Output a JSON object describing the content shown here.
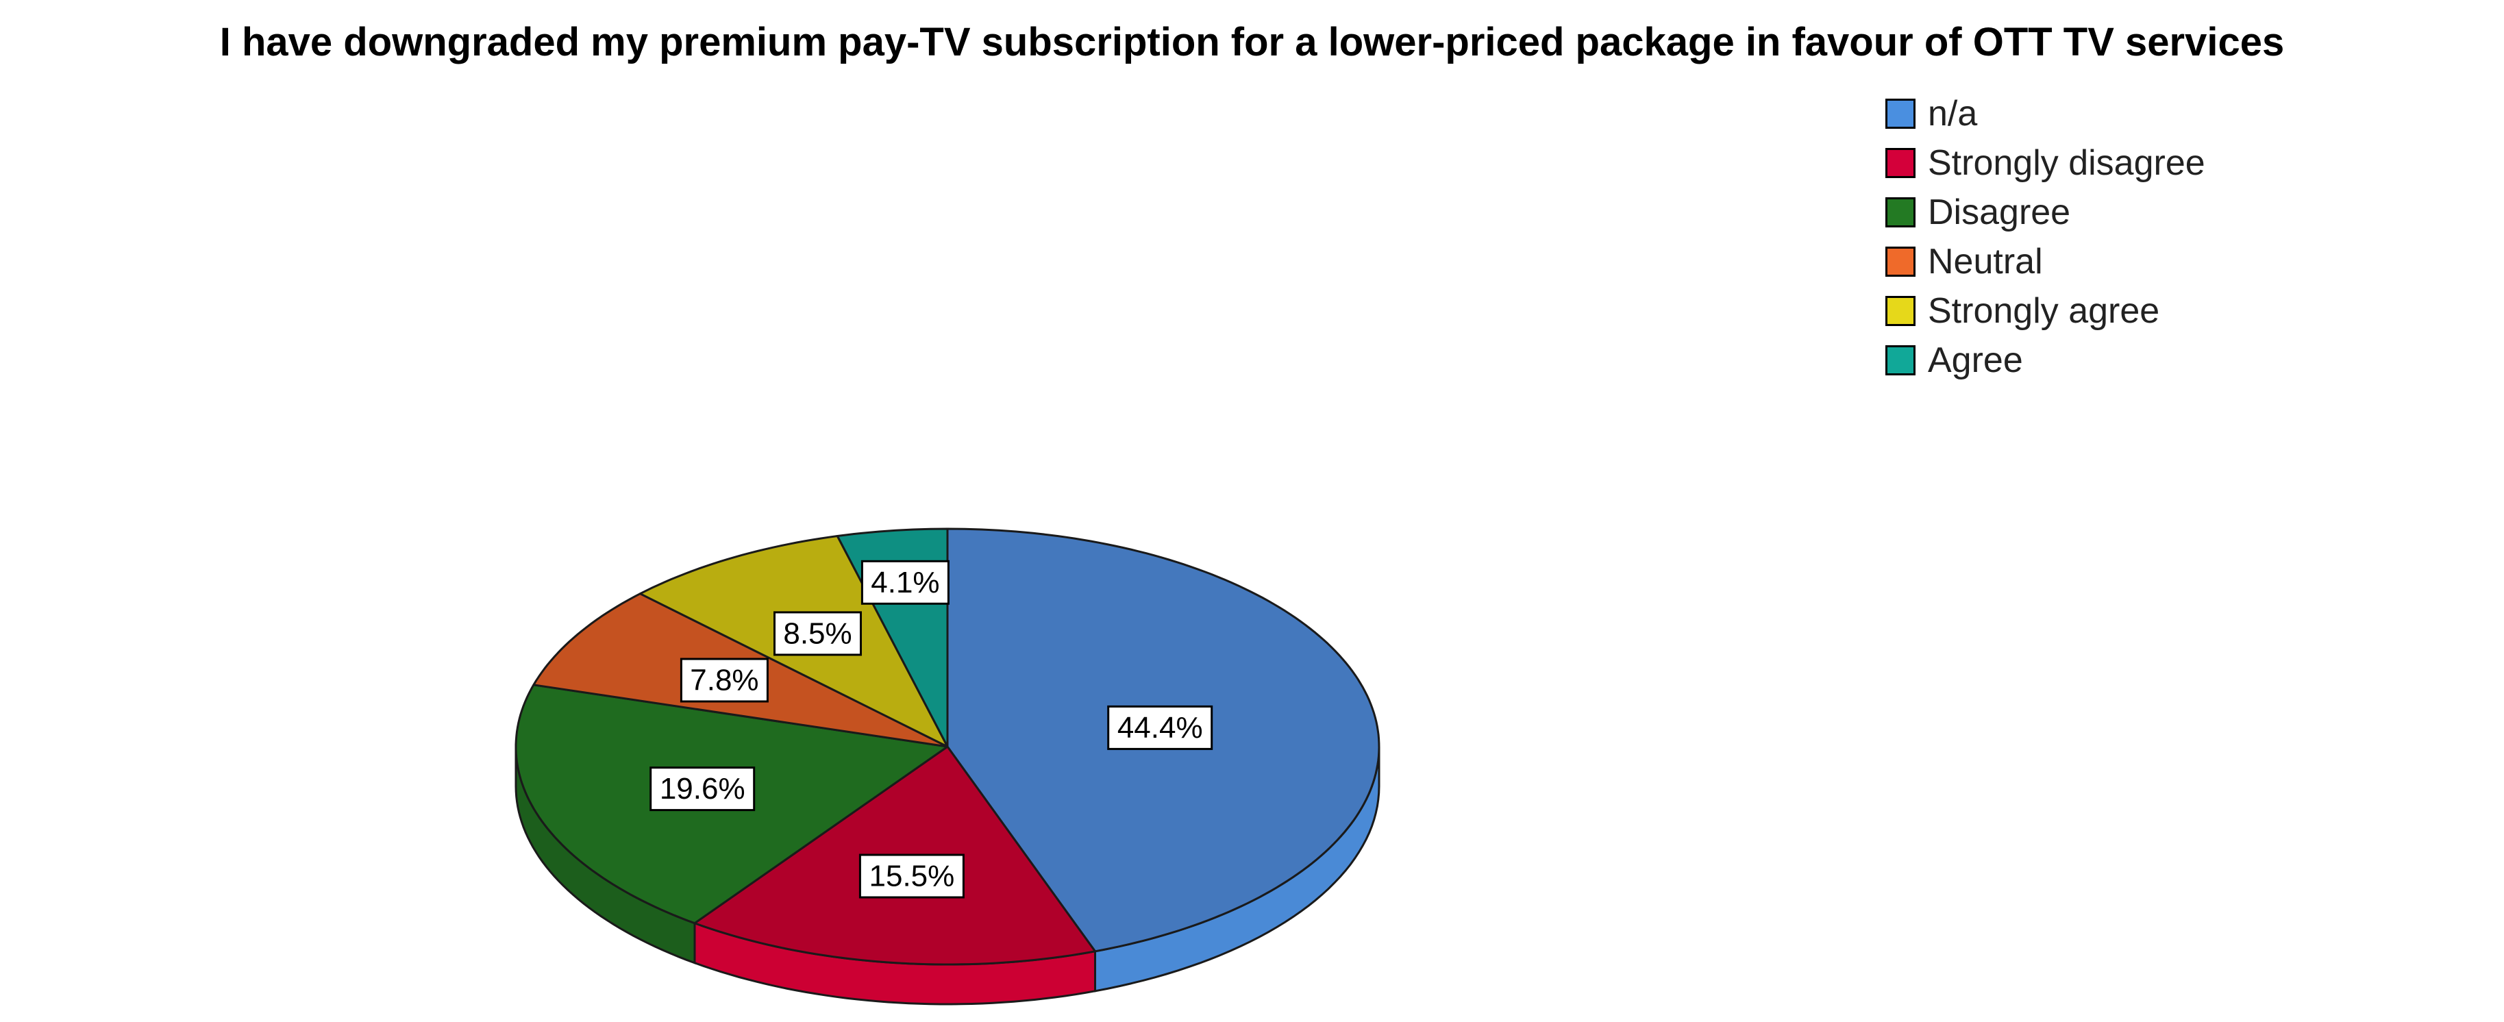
{
  "chart_data": {
    "type": "pie",
    "title": "I have downgraded my premium pay-TV subscription for a lower-priced package in favour of OTT TV services",
    "legend_position": "top-right",
    "style": "3d",
    "slices": [
      {
        "name": "n/a",
        "value": 44.4,
        "label": "44.4%",
        "color": "#4478bd",
        "side_color": "#4a8ad6",
        "legend_color": "#4a8fe0"
      },
      {
        "name": "Strongly disagree",
        "value": 15.5,
        "label": "15.5%",
        "color": "#b0002a",
        "side_color": "#cc0033",
        "legend_color": "#d4003a"
      },
      {
        "name": "Disagree",
        "value": 19.6,
        "label": "19.6%",
        "color": "#1f6b1f",
        "side_color": "#1c5e1c",
        "legend_color": "#237a23"
      },
      {
        "name": "Neutral",
        "value": 7.8,
        "label": "7.8%",
        "color": "#c55220",
        "side_color": "#a84418",
        "legend_color": "#ef6a2a"
      },
      {
        "name": "Strongly agree",
        "value": 8.5,
        "label": "8.5%",
        "color": "#b9ad10",
        "side_color": "#9c920d",
        "legend_color": "#e6d81a"
      },
      {
        "name": "Agree",
        "value": 4.1,
        "label": "4.1%",
        "color": "#0e8f82",
        "side_color": "#0b7369",
        "legend_color": "#11a898"
      }
    ]
  }
}
